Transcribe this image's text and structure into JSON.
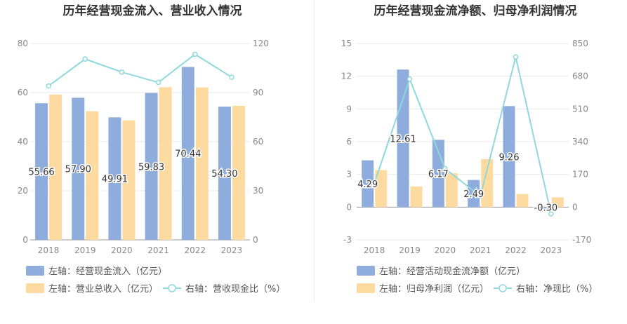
{
  "chart_data": [
    {
      "type": "bar",
      "title": "历年经营现金流入、营业收入情况",
      "categories": [
        "2018",
        "2019",
        "2020",
        "2021",
        "2022",
        "2023"
      ],
      "y_left": {
        "min": 0,
        "max": 80,
        "ticks": [
          "0",
          "20",
          "40",
          "60",
          "80"
        ]
      },
      "y_right": {
        "min": 0,
        "max": 120,
        "ticks": [
          "0",
          "30",
          "60",
          "90",
          "120"
        ]
      },
      "series": [
        {
          "name": "左轴：经营现金流入（亿元）",
          "kind": "bar",
          "axis": "left",
          "color": "#8eaddd",
          "values": [
            55.66,
            57.9,
            49.91,
            59.83,
            70.44,
            54.3
          ],
          "labels": [
            "55.66",
            "57.90",
            "49.91",
            "59.83",
            "70.44",
            "54.30"
          ]
        },
        {
          "name": "左轴：营业总收入（亿元）",
          "kind": "bar",
          "axis": "left",
          "color": "#fddba0",
          "values": [
            59.2,
            52.4,
            48.7,
            62.2,
            62.1,
            54.6
          ]
        },
        {
          "name": "右轴：营收现金比（%）",
          "kind": "line",
          "axis": "right",
          "color": "#8fd8dc",
          "values": [
            94.0,
            110.5,
            102.5,
            96.2,
            113.4,
            99.4
          ]
        }
      ]
    },
    {
      "type": "bar",
      "title": "历年经营现金流净额、归母净利润情况",
      "categories": [
        "2018",
        "2019",
        "2020",
        "2021",
        "2022",
        "2023"
      ],
      "y_left": {
        "min": -3,
        "max": 15,
        "ticks": [
          "-3",
          "0",
          "3",
          "6",
          "9",
          "12",
          "15"
        ]
      },
      "y_right": {
        "min": -170,
        "max": 850,
        "ticks": [
          "-170",
          "0",
          "170",
          "340",
          "510",
          "680",
          "850"
        ]
      },
      "series": [
        {
          "name": "左轴：经营活动现金流净额（亿元）",
          "kind": "bar",
          "axis": "left",
          "color": "#8eaddd",
          "values": [
            4.29,
            12.61,
            6.17,
            2.49,
            9.26,
            -0.3
          ],
          "labels": [
            "4.29",
            "12.61",
            "6.17",
            "2.49",
            "9.26",
            "-0.30"
          ]
        },
        {
          "name": "左轴：归母净利润（亿元）",
          "kind": "bar",
          "axis": "left",
          "color": "#fddba0",
          "values": [
            3.4,
            1.9,
            3.1,
            4.4,
            1.2,
            0.9
          ]
        },
        {
          "name": "右轴：净现比（%）",
          "kind": "line",
          "axis": "right",
          "color": "#8fd8dc",
          "values": [
            125,
            665,
            200,
            57,
            780,
            -35
          ]
        }
      ]
    }
  ]
}
